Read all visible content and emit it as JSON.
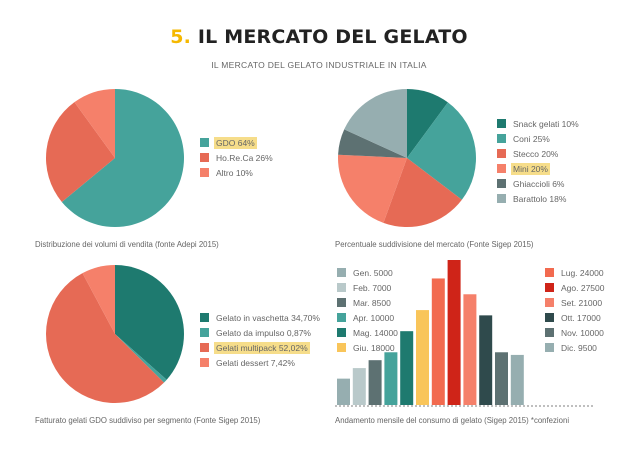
{
  "header": {
    "number": "5.",
    "title": "IL MERCATO DEL GELATO",
    "subtitle": "IL MERCATO DEL GELATO INDUSTRIALE IN ITALIA"
  },
  "chart_data": [
    {
      "type": "pie",
      "caption": "Distribuzione dei volumi di vendita (fonte Adepi 2015)",
      "slices": [
        {
          "label": "GDO 64%",
          "value": 64,
          "color": "#45a39b",
          "highlight": true
        },
        {
          "label": "Ho.Re.Ca 26%",
          "value": 26,
          "color": "#e66a55",
          "highlight": false
        },
        {
          "label": "Altro 10%",
          "value": 10,
          "color": "#f5806a",
          "highlight": false
        }
      ]
    },
    {
      "type": "pie",
      "caption": "Percentuale suddivisione del mercato (Fonte Sigep 2015)",
      "slices": [
        {
          "label": "Snack gelati 10%",
          "value": 10,
          "color": "#1e7a6f",
          "highlight": false
        },
        {
          "label": "Coni 25%",
          "value": 25,
          "color": "#45a39b",
          "highlight": false
        },
        {
          "label": "Stecco 20%",
          "value": 20,
          "color": "#e66a55",
          "highlight": false
        },
        {
          "label": "Mini 20%",
          "value": 20,
          "color": "#f5806a",
          "highlight": true
        },
        {
          "label": "Ghiaccioli 6%",
          "value": 6,
          "color": "#5d7172",
          "highlight": false
        },
        {
          "label": "Barattolo 18%",
          "value": 18,
          "color": "#96aeb0",
          "highlight": false
        }
      ]
    },
    {
      "type": "pie",
      "caption": "Fatturato gelati GDO suddiviso per segmento (Fonte Sigep 2015)",
      "slices": [
        {
          "label": "Gelato in vaschetta 34,70%",
          "value": 34.7,
          "color": "#1e7a6f",
          "highlight": false
        },
        {
          "label": "Gelato da impulso 0,87%",
          "value": 0.87,
          "color": "#45a39b",
          "highlight": false
        },
        {
          "label": "Gelati multipack 52,02%",
          "value": 52.02,
          "color": "#e66a55",
          "highlight": true
        },
        {
          "label": "Gelati dessert 7,42%",
          "value": 7.42,
          "color": "#f5806a",
          "highlight": false
        }
      ]
    },
    {
      "type": "bar",
      "caption": "Andamento mensile del consumo di gelato (Sigep 2015) *confezioni",
      "ylim": [
        0,
        27500
      ],
      "bars": [
        {
          "label": "Gen. 5000",
          "value": 5000,
          "color": "#96aeb0"
        },
        {
          "label": "Feb. 7000",
          "value": 7000,
          "color": "#b9c9ca"
        },
        {
          "label": "Mar. 8500",
          "value": 8500,
          "color": "#5d7172"
        },
        {
          "label": "Apr. 10000",
          "value": 10000,
          "color": "#45a39b"
        },
        {
          "label": "Mag. 14000",
          "value": 14000,
          "color": "#1e7a6f"
        },
        {
          "label": "Giu. 18000",
          "value": 18000,
          "color": "#f9c55a"
        },
        {
          "label": "Lug. 24000",
          "value": 24000,
          "color": "#f26a4f"
        },
        {
          "label": "Ago. 27500",
          "value": 27500,
          "color": "#cf2418"
        },
        {
          "label": "Set. 21000",
          "value": 21000,
          "color": "#f5806a"
        },
        {
          "label": "Ott. 17000",
          "value": 17000,
          "color": "#2f4a4c"
        },
        {
          "label": "Nov. 10000",
          "value": 10000,
          "color": "#5d7172"
        },
        {
          "label": "Dic. 9500",
          "value": 9500,
          "color": "#96aeb0"
        }
      ]
    }
  ]
}
